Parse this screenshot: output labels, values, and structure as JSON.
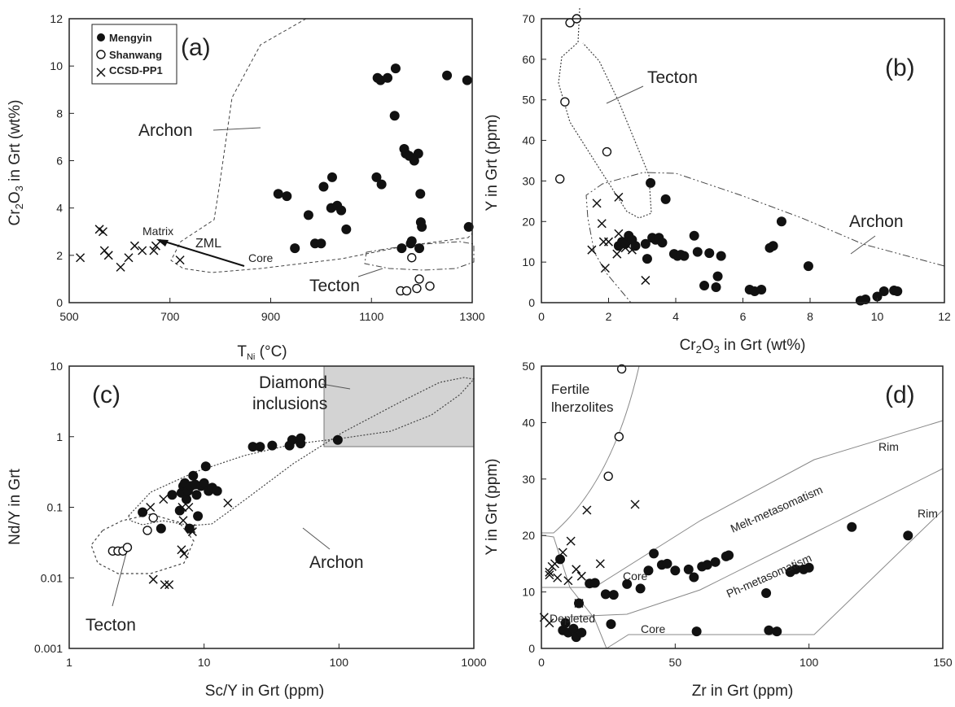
{
  "chart_data": [
    {
      "type": "scatter",
      "panel_label": "(a)",
      "xlabel": "T_Ni (°C)",
      "ylabel": "Cr2O3 in Grt (wt%)",
      "xlim": [
        500,
        1300
      ],
      "ylim": [
        0,
        12
      ],
      "x_ticks": [
        500,
        700,
        900,
        1100,
        1300
      ],
      "y_ticks": [
        0,
        2,
        4,
        6,
        8,
        10,
        12
      ],
      "legend": {
        "position": "top-left",
        "entries": [
          "Mengyin",
          "Shanwang",
          "CCSD-PP1"
        ]
      },
      "series": [
        {
          "name": "Mengyin",
          "marker": "filled-circle",
          "points": [
            [
              915,
              4.6
            ],
            [
              932,
              4.5
            ],
            [
              948,
              2.3
            ],
            [
              975,
              3.7
            ],
            [
              988,
              2.5
            ],
            [
              1000,
              2.5
            ],
            [
              1005,
              4.9
            ],
            [
              1020,
              4.0
            ],
            [
              1022,
              5.3
            ],
            [
              1032,
              4.1
            ],
            [
              1040,
              3.9
            ],
            [
              1050,
              3.1
            ],
            [
              1110,
              5.3
            ],
            [
              1112,
              9.5
            ],
            [
              1118,
              9.4
            ],
            [
              1120,
              5.0
            ],
            [
              1132,
              9.5
            ],
            [
              1146,
              7.9
            ],
            [
              1148,
              9.9
            ],
            [
              1160,
              2.3
            ],
            [
              1165,
              6.5
            ],
            [
              1168,
              6.3
            ],
            [
              1175,
              6.2
            ],
            [
              1178,
              2.5
            ],
            [
              1180,
              2.6
            ],
            [
              1185,
              6.0
            ],
            [
              1193,
              6.3
            ],
            [
              1195,
              2.3
            ],
            [
              1197,
              4.6
            ],
            [
              1198,
              3.4
            ],
            [
              1200,
              3.2
            ],
            [
              1250,
              9.6
            ],
            [
              1290,
              9.4
            ],
            [
              1293,
              3.2
            ]
          ]
        },
        {
          "name": "Shanwang",
          "marker": "open-circle",
          "points": [
            [
              1158,
              0.5
            ],
            [
              1170,
              0.5
            ],
            [
              1190,
              0.6
            ],
            [
              1195,
              1.0
            ],
            [
              1216,
              0.7
            ],
            [
              1180,
              1.9
            ]
          ]
        },
        {
          "name": "CCSD-PP1",
          "marker": "cross",
          "points": [
            [
              522,
              1.9
            ],
            [
              560,
              3.1
            ],
            [
              567,
              3.0
            ],
            [
              570,
              2.2
            ],
            [
              578,
              2.0
            ],
            [
              602,
              1.5
            ],
            [
              618,
              1.9
            ],
            [
              630,
              2.4
            ],
            [
              645,
              2.2
            ],
            [
              668,
              2.2
            ],
            [
              672,
              2.4
            ],
            [
              720,
              1.8
            ]
          ]
        }
      ],
      "annotations": [
        "Archon",
        "Tecton",
        "Matrix",
        "ZML",
        "Core"
      ]
    },
    {
      "type": "scatter",
      "panel_label": "(b)",
      "xlabel": "Cr2O3 in Grt (wt%)",
      "ylabel": "Y in Grt (ppm)",
      "xlim": [
        0,
        12
      ],
      "ylim": [
        0,
        70
      ],
      "x_ticks": [
        0,
        2,
        4,
        6,
        8,
        10,
        12
      ],
      "y_ticks": [
        0,
        10,
        20,
        30,
        40,
        50,
        60,
        70
      ],
      "series": [
        {
          "name": "Mengyin",
          "marker": "filled-circle",
          "points": [
            [
              2.3,
              14.0
            ],
            [
              2.4,
              15.0
            ],
            [
              2.5,
              14.5
            ],
            [
              2.6,
              16.5
            ],
            [
              2.7,
              15.5
            ],
            [
              2.8,
              14.0
            ],
            [
              3.1,
              14.5
            ],
            [
              3.15,
              10.8
            ],
            [
              3.25,
              29.5
            ],
            [
              3.3,
              16.0
            ],
            [
              3.4,
              15.5
            ],
            [
              3.5,
              16.0
            ],
            [
              3.6,
              14.8
            ],
            [
              3.7,
              25.5
            ],
            [
              3.95,
              12.0
            ],
            [
              4.05,
              11.5
            ],
            [
              4.15,
              11.8
            ],
            [
              4.25,
              11.5
            ],
            [
              4.55,
              16.5
            ],
            [
              4.65,
              12.5
            ],
            [
              4.85,
              4.2
            ],
            [
              5.0,
              12.2
            ],
            [
              5.2,
              3.8
            ],
            [
              5.25,
              6.5
            ],
            [
              5.35,
              11.5
            ],
            [
              6.2,
              3.2
            ],
            [
              6.35,
              2.8
            ],
            [
              6.55,
              3.2
            ],
            [
              6.8,
              13.5
            ],
            [
              6.9,
              14.0
            ],
            [
              7.15,
              20.0
            ],
            [
              7.95,
              9.0
            ],
            [
              9.5,
              0.5
            ],
            [
              9.65,
              0.8
            ],
            [
              10.0,
              1.5
            ],
            [
              10.2,
              2.8
            ],
            [
              10.5,
              3.0
            ],
            [
              10.6,
              2.8
            ]
          ]
        },
        {
          "name": "Shanwang",
          "marker": "open-circle",
          "points": [
            [
              0.55,
              30.5
            ],
            [
              0.7,
              49.5
            ],
            [
              0.85,
              69.0
            ],
            [
              1.05,
              70.0
            ],
            [
              1.95,
              37.2
            ]
          ]
        },
        {
          "name": "CCSD-PP1",
          "marker": "cross",
          "points": [
            [
              1.5,
              13.0
            ],
            [
              1.65,
              24.5
            ],
            [
              1.8,
              19.5
            ],
            [
              1.85,
              15.0
            ],
            [
              1.9,
              8.5
            ],
            [
              2.0,
              15.0
            ],
            [
              2.25,
              12.0
            ],
            [
              2.3,
              17.0
            ],
            [
              2.3,
              26.0
            ],
            [
              2.5,
              13.5
            ],
            [
              2.7,
              13.0
            ],
            [
              3.1,
              5.5
            ]
          ]
        }
      ],
      "annotations": [
        "Tecton",
        "Archon"
      ]
    },
    {
      "type": "scatter",
      "panel_label": "(c)",
      "xlabel": "Sc/Y in Grt (ppm)",
      "ylabel": "Nd/Y in Grt",
      "xscale": "log",
      "yscale": "log",
      "xlim": [
        1,
        1000
      ],
      "ylim": [
        0.001,
        10
      ],
      "x_ticks": [
        1,
        10,
        100,
        1000
      ],
      "y_ticks": [
        0.001,
        0.01,
        0.1,
        1,
        10
      ],
      "series": [
        {
          "name": "Mengyin",
          "marker": "filled-circle",
          "points": [
            [
              3.5,
              0.085
            ],
            [
              4.8,
              0.05
            ],
            [
              5.8,
              0.15
            ],
            [
              6.6,
              0.09
            ],
            [
              6.8,
              0.16
            ],
            [
              7.0,
              0.2
            ],
            [
              7.2,
              0.22
            ],
            [
              7.4,
              0.13
            ],
            [
              7.6,
              0.17
            ],
            [
              7.8,
              0.05
            ],
            [
              8.0,
              0.2
            ],
            [
              8.3,
              0.28
            ],
            [
              8.6,
              0.21
            ],
            [
              8.8,
              0.15
            ],
            [
              9.0,
              0.075
            ],
            [
              9.5,
              0.2
            ],
            [
              10.0,
              0.22
            ],
            [
              10.3,
              0.38
            ],
            [
              10.8,
              0.17
            ],
            [
              11.5,
              0.19
            ],
            [
              12.5,
              0.17
            ],
            [
              23,
              0.72
            ],
            [
              26,
              0.72
            ],
            [
              32,
              0.75
            ],
            [
              43,
              0.75
            ],
            [
              45,
              0.9
            ],
            [
              52,
              0.8
            ],
            [
              52,
              0.95
            ],
            [
              98,
              0.9
            ]
          ]
        },
        {
          "name": "Shanwang",
          "marker": "open-circle",
          "points": [
            [
              2.1,
              0.024
            ],
            [
              2.3,
              0.024
            ],
            [
              2.5,
              0.024
            ],
            [
              2.7,
              0.027
            ],
            [
              3.8,
              0.047
            ],
            [
              4.2,
              0.071
            ]
          ]
        },
        {
          "name": "CCSD-PP1",
          "marker": "cross",
          "points": [
            [
              4.0,
              0.1
            ],
            [
              4.2,
              0.0095
            ],
            [
              5.0,
              0.13
            ],
            [
              5.1,
              0.008
            ],
            [
              5.5,
              0.008
            ],
            [
              6.8,
              0.025
            ],
            [
              6.9,
              0.1
            ],
            [
              7.0,
              0.065
            ],
            [
              7.1,
              0.022
            ],
            [
              7.7,
              0.1
            ],
            [
              8.0,
              0.05
            ],
            [
              8.2,
              0.045
            ],
            [
              15,
              0.115
            ]
          ]
        }
      ],
      "annotations": [
        "Diamond inclusions",
        "Archon",
        "Tecton"
      ]
    },
    {
      "type": "scatter",
      "panel_label": "(d)",
      "xlabel": "Zr in Grt (ppm)",
      "ylabel": "Y in Grt (ppm)",
      "xlim": [
        0,
        150
      ],
      "ylim": [
        0,
        50
      ],
      "x_ticks": [
        0,
        50,
        100,
        150
      ],
      "y_ticks": [
        0,
        10,
        20,
        30,
        40,
        50
      ],
      "series": [
        {
          "name": "Mengyin",
          "marker": "filled-circle",
          "points": [
            [
              7,
              15.8
            ],
            [
              8,
              3.2
            ],
            [
              9,
              4.5
            ],
            [
              10,
              2.8
            ],
            [
              12,
              3.5
            ],
            [
              13,
              2.0
            ],
            [
              14,
              8.0
            ],
            [
              15,
              2.8
            ],
            [
              18,
              11.5
            ],
            [
              20,
              11.6
            ],
            [
              24,
              9.6
            ],
            [
              26,
              4.3
            ],
            [
              27,
              9.5
            ],
            [
              32,
              11.4
            ],
            [
              37,
              10.6
            ],
            [
              40,
              13.8
            ],
            [
              42,
              16.8
            ],
            [
              45,
              14.8
            ],
            [
              47,
              15.0
            ],
            [
              50,
              13.8
            ],
            [
              55,
              14.0
            ],
            [
              57,
              12.6
            ],
            [
              58,
              3.0
            ],
            [
              60,
              14.5
            ],
            [
              62,
              14.8
            ],
            [
              65,
              15.3
            ],
            [
              69,
              16.3
            ],
            [
              70,
              16.5
            ],
            [
              84,
              9.8
            ],
            [
              85,
              3.2
            ],
            [
              88,
              3.0
            ],
            [
              93,
              13.5
            ],
            [
              95,
              14.0
            ],
            [
              98,
              14.0
            ],
            [
              100,
              14.3
            ],
            [
              116,
              21.5
            ],
            [
              137,
              20.0
            ]
          ]
        },
        {
          "name": "Shanwang",
          "marker": "open-circle",
          "points": [
            [
              25,
              30.5
            ],
            [
              29,
              37.5
            ],
            [
              30,
              49.5
            ]
          ]
        },
        {
          "name": "CCSD-PP1",
          "marker": "cross",
          "points": [
            [
              3,
              13.0
            ],
            [
              3,
              13.5
            ],
            [
              4,
              14.5
            ],
            [
              5,
              15.0
            ],
            [
              6,
              12.5
            ],
            [
              8,
              17.0
            ],
            [
              10,
              12.0
            ],
            [
              11,
              19.0
            ],
            [
              13,
              14.0
            ],
            [
              14,
              8.0
            ],
            [
              15,
              12.8
            ],
            [
              17,
              24.5
            ],
            [
              22,
              15.0
            ],
            [
              35,
              25.5
            ],
            [
              1,
              5.5
            ],
            [
              3,
              4.5
            ]
          ]
        }
      ],
      "annotations": [
        "Fertile lherzolites",
        "Rim",
        "Rim",
        "Melt-metasomatism",
        "Ph-metasomatism",
        "Core",
        "Core",
        "Depleted"
      ]
    }
  ],
  "text": {
    "a_letter": "(a)",
    "b_letter": "(b)",
    "c_letter": "(c)",
    "d_letter": "(d)",
    "leg_mengyin": "Mengyin",
    "leg_shanwang": "Shanwang",
    "leg_ccsd": "CCSD-PP1",
    "archon": "Archon",
    "tecton": "Tecton",
    "matrix": "Matrix",
    "zml": "ZML",
    "core": "Core",
    "diamond1": "Diamond",
    "diamond2": "inclusions",
    "fertile1": "Fertile",
    "fertile2": "lherzolites",
    "rim": "Rim",
    "melt": "Melt-metasomatism",
    "ph": "Ph-metasomatism",
    "depleted": "Depleted"
  }
}
